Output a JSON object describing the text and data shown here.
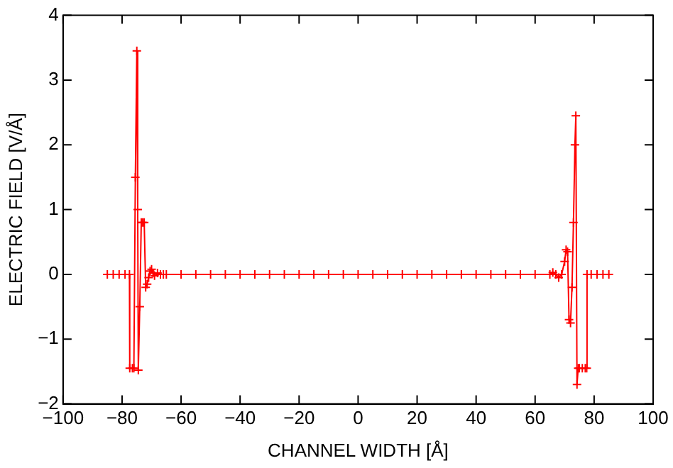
{
  "chart_data": {
    "type": "line",
    "xlabel": "CHANNEL WIDTH [Å]",
    "ylabel": "ELECTRIC FIELD [V/Å]",
    "xlim": [
      -100,
      100
    ],
    "xticks": [
      -100,
      -80,
      -60,
      -40,
      -20,
      0,
      20,
      40,
      60,
      80,
      100
    ],
    "ylim": [
      -2,
      4
    ],
    "yticks": [
      -2,
      -1,
      0,
      1,
      2,
      3,
      4
    ],
    "grid": false,
    "legend": false,
    "marker": "cross",
    "line_style": "solid",
    "series": [
      {
        "color": "#ff0000",
        "x": [
          -85,
          -83,
          -81,
          -79,
          -77.5,
          -77.4,
          -76.5,
          -76,
          -75.5,
          -75,
          -74.7,
          -74.5,
          -74,
          -73.5,
          -73,
          -72.5,
          -72,
          -71.5,
          -71,
          -70.5,
          -70,
          -69.5,
          -69,
          -68,
          -67,
          -66,
          -65,
          -60,
          -55,
          -50,
          -45,
          -40,
          -35,
          -30,
          -25,
          -20,
          -15,
          -10,
          -5,
          0,
          5,
          10,
          15,
          20,
          25,
          30,
          35,
          40,
          45,
          50,
          55,
          60,
          65,
          66,
          67,
          68,
          69,
          70,
          70.5,
          71,
          71.5,
          72,
          72.5,
          73,
          73.5,
          73.8,
          74.2,
          74.6,
          75,
          76,
          77,
          77.5,
          77.6,
          79,
          81,
          83,
          85
        ],
        "values": [
          0,
          0,
          0,
          0,
          0,
          -1.45,
          -1.45,
          -1.45,
          1.5,
          3.45,
          1.0,
          -1.48,
          -0.5,
          0.8,
          0.8,
          0.8,
          -0.2,
          -0.15,
          -0.05,
          0.05,
          0.08,
          0.02,
          -0.02,
          0.02,
          0,
          0,
          0,
          0,
          0,
          0,
          0,
          0,
          0,
          0,
          0,
          0,
          0,
          0,
          0,
          0,
          0,
          0,
          0,
          0,
          0,
          0,
          0,
          0,
          0,
          0,
          0,
          0,
          0,
          0.03,
          0,
          -0.05,
          0,
          0.2,
          0.38,
          0.35,
          -0.7,
          -0.75,
          -0.2,
          0.8,
          2.0,
          2.45,
          -1.7,
          -1.45,
          -1.45,
          -1.45,
          -1.45,
          -1.45,
          0,
          0,
          0,
          0,
          0
        ]
      }
    ]
  }
}
